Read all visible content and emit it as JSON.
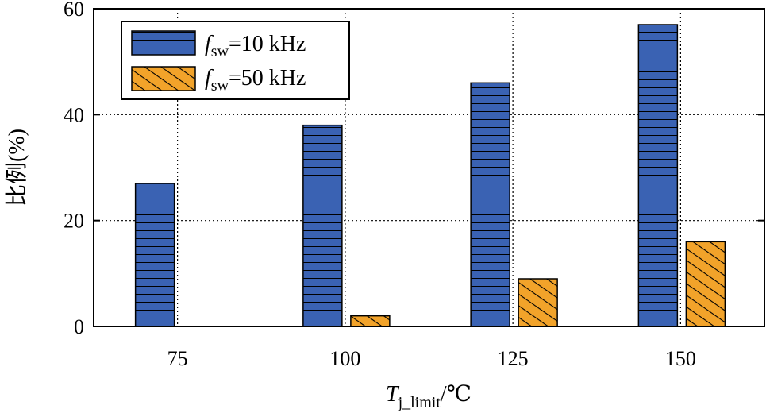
{
  "chart_data": {
    "type": "bar",
    "title": "",
    "xlabel": "T_j_limit/℃",
    "ylabel": "比例(%)",
    "categories": [
      "75",
      "100",
      "125",
      "150"
    ],
    "ylim": [
      0,
      60
    ],
    "yticks": [
      0,
      20,
      40,
      60
    ],
    "grid": true,
    "legend_position": "top-left",
    "series": [
      {
        "name": "f_sw=10 kHz",
        "values": [
          27,
          38,
          46,
          57
        ],
        "color": "#3a62b3",
        "pattern": "horizontal-lines"
      },
      {
        "name": "f_sw=50 kHz",
        "values": [
          0,
          2,
          9,
          16
        ],
        "color": "#f2a32a",
        "pattern": "diagonal-lines"
      }
    ]
  },
  "labels": {
    "y_axis": "比例(%)",
    "x_axis_main": "T",
    "x_axis_sub": "j_limit",
    "x_axis_unit": "/℃",
    "legend_f": "f",
    "legend_sub": "sw",
    "legend_1_value": "=10 kHz",
    "legend_2_value": "=50 kHz"
  }
}
